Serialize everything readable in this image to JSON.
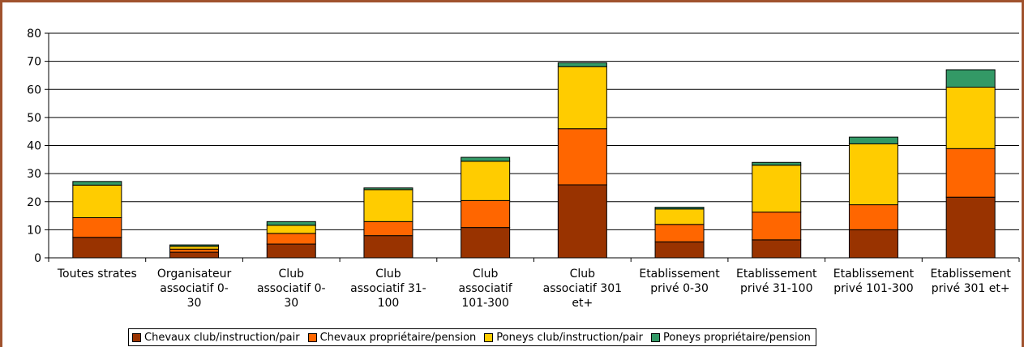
{
  "chart_data": {
    "type": "bar",
    "stacked": true,
    "categories": [
      [
        "Toutes strates"
      ],
      [
        "Organisateur",
        "associatif 0-",
        "30"
      ],
      [
        "Club",
        "associatif 0-",
        "30"
      ],
      [
        "Club",
        "associatif 31-",
        "100"
      ],
      [
        "Club",
        "associatif",
        "101-300"
      ],
      [
        "Club",
        "associatif 301",
        "et+"
      ],
      [
        "Etablissement",
        "privé 0-30"
      ],
      [
        "Etablissement",
        "privé 31-100"
      ],
      [
        "Etablissement",
        "privé 101-300"
      ],
      [
        "Etablissement",
        "privé 301 et+"
      ]
    ],
    "series": [
      {
        "name": "Chevaux club/instruction/pair",
        "color": "#993300",
        "values": [
          7.3,
          2.0,
          4.9,
          7.9,
          10.8,
          26.0,
          5.7,
          6.4,
          10.0,
          21.6
        ]
      },
      {
        "name": "Chevaux propriétaire/pension",
        "color": "#ff6600",
        "values": [
          7.0,
          1.1,
          3.8,
          5.0,
          9.6,
          20.0,
          6.2,
          9.9,
          8.9,
          17.3
        ]
      },
      {
        "name": "Poneys club/instruction/pair",
        "color": "#ffcc00",
        "values": [
          11.6,
          1.0,
          2.9,
          11.4,
          14.0,
          22.1,
          5.5,
          16.7,
          21.7,
          21.9
        ]
      },
      {
        "name": "Poneys propriétaire/pension",
        "color": "#339966",
        "values": [
          1.3,
          0.5,
          1.3,
          0.6,
          1.4,
          1.4,
          0.6,
          1.0,
          2.4,
          6.2
        ]
      }
    ],
    "yticks": [
      0,
      10,
      20,
      30,
      40,
      50,
      60,
      70,
      80
    ],
    "ylim": [
      0,
      80
    ],
    "grid": true,
    "legend_position": "bottom"
  }
}
